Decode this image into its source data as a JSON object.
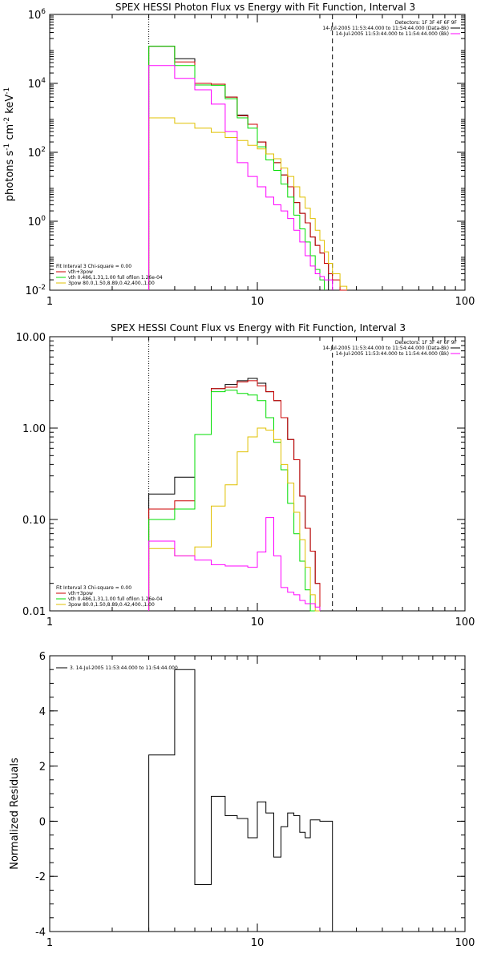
{
  "colors": {
    "background": "#ffffff",
    "axes": "#000000",
    "data": "#000000",
    "background_fit": "#ff00ff",
    "total_fit": "#cc0000",
    "thermal": "#00dd00",
    "nonthermal": "#e0c000"
  },
  "chart_data": [
    {
      "type": "line",
      "title": "SPEX HESSI Photon Flux vs Energy with Fit Function, Interval 3",
      "xlabel": "",
      "ylabel": "photons s-1 cm-2 keV-1",
      "ylabel_parts": [
        "photons s",
        "-1",
        " cm",
        "-2",
        " keV",
        "-1"
      ],
      "xscale": "log",
      "yscale": "log",
      "xlim": [
        1,
        100
      ],
      "ylim": [
        0.01,
        1000000
      ],
      "xticks": [
        1,
        10,
        100
      ],
      "xticklabels": [
        "1",
        "10",
        "100"
      ],
      "yticks": [
        0.01,
        1,
        100,
        10000,
        1000000
      ],
      "yticklabels": [
        {
          "base": "10",
          "exp": "-2"
        },
        {
          "base": "10",
          "exp": "0"
        },
        {
          "base": "10",
          "exp": "2"
        },
        {
          "base": "10",
          "exp": "4"
        },
        {
          "base": "10",
          "exp": "6"
        }
      ],
      "legend_top_right": [
        "Detectors: 1F 3F 4F 6F 9F",
        "14-Jul-2005 11:53:44.000 to 11:54:44.000 (Data-Bk)",
        "14-Jul-2005 11:53:44.000 to 11:54:44.000 (Bk)"
      ],
      "legend_top_right_colors": [
        "",
        "#000000",
        "#ff00ff"
      ],
      "legend_bottom_left": [
        "Fit Interval 3   Chi-square = 0.00",
        "vth+3pow",
        "vth 0.486,1.31,1.00  full ofilon 1.26e-04",
        "3pow 80.0,1.50,8.89,0.42,400.,1.00"
      ],
      "legend_bottom_left_colors": [
        "",
        "#cc0000",
        "#00dd00",
        "#e0c000"
      ],
      "vlines": [
        {
          "x": 3,
          "style": "dotted"
        },
        {
          "x": 23,
          "style": "dashed"
        }
      ],
      "energy_edges": [
        3,
        4,
        5,
        6,
        7,
        8,
        9,
        10,
        11,
        12,
        13,
        14,
        15,
        16,
        17,
        18,
        19,
        20,
        21,
        22,
        23,
        25,
        27
      ],
      "series": [
        {
          "name": "Data-Bk",
          "color": "#000000",
          "values": [
            120000,
            52000,
            9000,
            9500,
            4000,
            1200,
            650,
            200,
            90,
            50,
            22,
            10,
            3.5,
            1.7,
            0.9,
            0.35,
            0.2,
            0.12,
            0.06,
            null,
            null,
            null
          ]
        },
        {
          "name": "vth+3pow",
          "color": "#cc0000",
          "values": [
            120000,
            42000,
            10000,
            9500,
            4000,
            1150,
            650,
            200,
            90,
            50,
            22,
            10,
            3.5,
            1.7,
            0.9,
            0.35,
            0.2,
            0.12,
            0.06,
            0.03,
            0.02,
            0.01
          ]
        },
        {
          "name": "vth",
          "color": "#00dd00",
          "values": [
            120000,
            33000,
            9000,
            8800,
            3600,
            1000,
            500,
            145,
            60,
            30,
            12,
            5,
            1.5,
            0.6,
            0.25,
            0.1,
            0.04,
            0.02,
            null,
            null,
            null,
            null
          ]
        },
        {
          "name": "3pow",
          "color": "#e0c000",
          "values": [
            1000,
            700,
            500,
            380,
            270,
            220,
            160,
            125,
            90,
            65,
            35,
            20,
            10,
            5,
            2.4,
            1.2,
            0.55,
            0.28,
            0.13,
            0.06,
            0.03,
            0.013
          ]
        },
        {
          "name": "Bk",
          "color": "#ff00ff",
          "values": [
            33000,
            14000,
            6500,
            2500,
            400,
            50,
            20,
            10,
            5,
            3,
            2,
            1.2,
            0.55,
            0.25,
            0.1,
            0.05,
            0.03,
            0.025,
            0.02,
            0.02,
            null,
            null
          ]
        }
      ]
    },
    {
      "type": "line",
      "title": "SPEX HESSI Count Flux vs Energy with Fit Function, Interval 3",
      "xlabel": "",
      "ylabel": "",
      "xscale": "log",
      "yscale": "log",
      "xlim": [
        1,
        100
      ],
      "ylim": [
        0.01,
        10
      ],
      "xticks": [
        1,
        10,
        100
      ],
      "xticklabels": [
        "1",
        "10",
        "100"
      ],
      "yticks": [
        0.01,
        0.1,
        1,
        10
      ],
      "yticklabels": [
        {
          "base": "0.01",
          "exp": ""
        },
        {
          "base": "0.10",
          "exp": ""
        },
        {
          "base": "1.00",
          "exp": ""
        },
        {
          "base": "10.00",
          "exp": ""
        }
      ],
      "legend_top_right": [
        "Detectors: 1F 3F 4F 6F 9F",
        "14-Jul-2005 11:53:44.000 to 11:54:44.000 (Data-Bk)",
        "14-Jul-2005 11:53:44.000 to 11:54:44.000 (Bk)"
      ],
      "legend_top_right_colors": [
        "",
        "#000000",
        "#ff00ff"
      ],
      "legend_bottom_left": [
        "Fit Interval 3   Chi-square = 0.00",
        "vth+3pow",
        "vth 0.486,1.31,1.00  full ofilon 1.26e-04",
        "3pow 80.0,1.50,8.89,0.42,400.,1.00"
      ],
      "legend_bottom_left_colors": [
        "",
        "#cc0000",
        "#00dd00",
        "#e0c000"
      ],
      "vlines": [
        {
          "x": 3,
          "style": "dotted"
        },
        {
          "x": 23,
          "style": "dashed"
        }
      ],
      "energy_edges": [
        3,
        4,
        5,
        6,
        7,
        8,
        9,
        10,
        11,
        12,
        13,
        14,
        15,
        16,
        17,
        18,
        19,
        20,
        21,
        22,
        23,
        25
      ],
      "series": [
        {
          "name": "Data-Bk",
          "color": "#000000",
          "values": [
            0.19,
            0.29,
            0.85,
            2.7,
            3.0,
            3.3,
            3.5,
            3.1,
            2.5,
            2.0,
            1.3,
            0.75,
            0.45,
            0.18,
            0.08,
            0.045,
            0.02,
            null,
            null,
            null,
            null
          ]
        },
        {
          "name": "vth+3pow",
          "color": "#cc0000",
          "values": [
            0.13,
            0.16,
            0.85,
            2.7,
            2.8,
            3.2,
            3.3,
            2.9,
            2.5,
            2.0,
            1.3,
            0.75,
            0.45,
            0.18,
            0.08,
            0.045,
            0.02,
            null,
            null,
            null,
            null
          ]
        },
        {
          "name": "vth",
          "color": "#00dd00",
          "values": [
            0.1,
            0.13,
            0.85,
            2.5,
            2.6,
            2.4,
            2.3,
            2.0,
            1.3,
            0.7,
            0.35,
            0.15,
            0.07,
            0.035,
            0.017,
            0.01,
            null,
            null,
            null,
            null,
            null
          ]
        },
        {
          "name": "3pow",
          "color": "#e0c000",
          "values": [
            0.048,
            0.04,
            0.05,
            0.14,
            0.24,
            0.55,
            0.8,
            1.0,
            0.95,
            0.75,
            0.4,
            0.25,
            0.12,
            0.06,
            0.03,
            0.015,
            0.01,
            null,
            null,
            null,
            null
          ]
        },
        {
          "name": "Bk",
          "color": "#ff00ff",
          "values": [
            0.058,
            0.04,
            0.036,
            0.032,
            0.031,
            0.031,
            0.03,
            0.044,
            0.105,
            0.04,
            0.018,
            0.016,
            0.015,
            0.013,
            0.012,
            0.012,
            0.011,
            null,
            null,
            null,
            null
          ]
        }
      ]
    },
    {
      "type": "line",
      "title": "",
      "xlabel": "",
      "ylabel": "Normalized Residuals",
      "xscale": "log",
      "yscale": "linear",
      "xlim": [
        1,
        100
      ],
      "ylim": [
        -4,
        6
      ],
      "xticks": [
        1,
        10,
        100
      ],
      "xticklabels": [
        "1",
        "10",
        "100"
      ],
      "yticks": [
        -4,
        -2,
        0,
        2,
        4,
        6
      ],
      "yticklabels": [
        "-4",
        "-2",
        "0",
        "2",
        "4",
        "6"
      ],
      "legend": "3. 14-Jul-2005 11:53:44.000 to 11:54:44.000",
      "energy_edges": [
        3,
        4,
        5,
        6,
        7,
        8,
        9,
        10,
        11,
        12,
        13,
        14,
        15,
        16,
        17,
        18,
        19,
        20,
        21,
        22,
        23
      ],
      "series": [
        {
          "name": "3. 14-Jul-2005 11:53:44.000 to 11:54:44.000",
          "color": "#000000",
          "values": [
            2.4,
            5.5,
            -2.3,
            0.9,
            0.2,
            0.1,
            -0.6,
            0.7,
            0.3,
            -1.3,
            -0.2,
            0.3,
            0.2,
            -0.4,
            -0.6,
            0.05,
            0.05,
            0.0,
            0.0,
            0.0
          ]
        }
      ]
    }
  ]
}
